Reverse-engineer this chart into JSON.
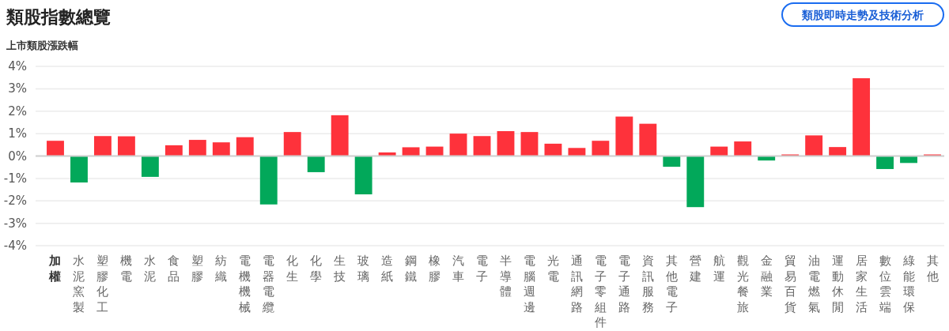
{
  "chart_data": {
    "type": "bar",
    "title": "類股指數總覽",
    "ylabel": "上市類股漲跌幅",
    "annotations": [
      "類股即時走勢及技術分析"
    ],
    "categories": [
      "加權",
      "水泥窯製",
      "塑膠化工",
      "機電",
      "水泥",
      "食品",
      "塑膠",
      "紡織",
      "電機機械",
      "電器電纜",
      "化生",
      "化學",
      "生技",
      "玻璃",
      "造紙",
      "鋼鐵",
      "橡膠",
      "汽車",
      "電子",
      "半導體",
      "電腦週邊",
      "光電",
      "通訊網路",
      "電子零組件",
      "電子通路",
      "資訊服務",
      "其他電子",
      "營建",
      "航運",
      "觀光餐旅",
      "金融業",
      "貿易百貨",
      "油電燃氣",
      "運動休閒",
      "居家生活",
      "數位雲端",
      "綠能環保",
      "其他"
    ],
    "values": [
      0.68,
      -1.18,
      0.89,
      0.88,
      -0.93,
      0.48,
      0.72,
      0.61,
      0.84,
      -2.16,
      1.07,
      -0.72,
      1.82,
      -1.71,
      0.16,
      0.39,
      0.42,
      1.0,
      0.89,
      1.11,
      1.07,
      0.55,
      0.36,
      0.68,
      1.76,
      1.44,
      -0.48,
      -2.28,
      0.42,
      0.65,
      -0.2,
      0.07,
      0.92,
      0.4,
      3.47,
      -0.58,
      -0.31,
      0.07
    ],
    "colors": [
      "#fe323b",
      "#02a85a",
      "#fe323b",
      "#fe323b",
      "#02a85a",
      "#fe323b",
      "#fe323b",
      "#fe323b",
      "#fe323b",
      "#02a85a",
      "#fe323b",
      "#02a85a",
      "#fe323b",
      "#02a85a",
      "#fe323b",
      "#fe323b",
      "#fe323b",
      "#fe323b",
      "#fe323b",
      "#fe323b",
      "#fe323b",
      "#fe323b",
      "#fe323b",
      "#fe323b",
      "#fe323b",
      "#fe323b",
      "#02a85a",
      "#02a85a",
      "#fe323b",
      "#fe323b",
      "#02a85a",
      "#fe323b",
      "#fe323b",
      "#fe323b",
      "#fe323b",
      "#02a85a",
      "#02a85a",
      "#fe323b"
    ],
    "ylim": [
      -4,
      4
    ],
    "yticks": [
      {
        "value": 4,
        "label": "4%"
      },
      {
        "value": 3,
        "label": "3%"
      },
      {
        "value": 2,
        "label": "2%"
      },
      {
        "value": 1,
        "label": "1%"
      },
      {
        "value": 0,
        "label": "0%"
      },
      {
        "value": -1,
        "label": "-1%"
      },
      {
        "value": -2,
        "label": "-2%"
      },
      {
        "value": -3,
        "label": "-3%"
      },
      {
        "value": -4,
        "label": "-4%"
      }
    ],
    "grid": "y"
  }
}
